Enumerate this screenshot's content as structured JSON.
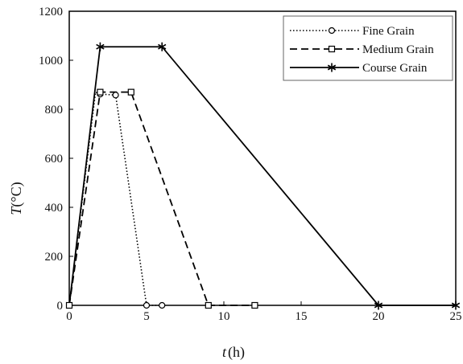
{
  "chart_data": {
    "type": "line",
    "title": "",
    "xlabel": {
      "symbol": "t",
      "unit": "(h)"
    },
    "ylabel": {
      "symbol": "T",
      "unit": "(°C)"
    },
    "xlim": [
      0,
      25
    ],
    "ylim": [
      0,
      1200
    ],
    "xticks": [
      0,
      5,
      10,
      15,
      20,
      25
    ],
    "yticks": [
      0,
      200,
      400,
      600,
      800,
      1000,
      1200
    ],
    "grid": false,
    "legend_position": "top-right",
    "series": [
      {
        "name": "Fine Grain",
        "style": "dotted",
        "marker": "circle",
        "x": [
          0,
          1.7,
          2,
          3,
          5,
          6
        ],
        "y": [
          0,
          870,
          862,
          858,
          0,
          0
        ],
        "markers_at": [
          2,
          3,
          5,
          6
        ]
      },
      {
        "name": "Medium Grain",
        "style": "dashed",
        "marker": "square",
        "x": [
          0,
          2,
          4,
          9,
          12
        ],
        "y": [
          0,
          870,
          870,
          0,
          0
        ],
        "markers_at": [
          0,
          2,
          4,
          9,
          12
        ]
      },
      {
        "name": "Course Grain",
        "style": "solid",
        "marker": "asterisk",
        "x": [
          0,
          2,
          6,
          20,
          25
        ],
        "y": [
          0,
          1055,
          1055,
          0,
          0
        ],
        "markers_at": [
          2,
          6,
          20,
          25
        ]
      }
    ]
  }
}
